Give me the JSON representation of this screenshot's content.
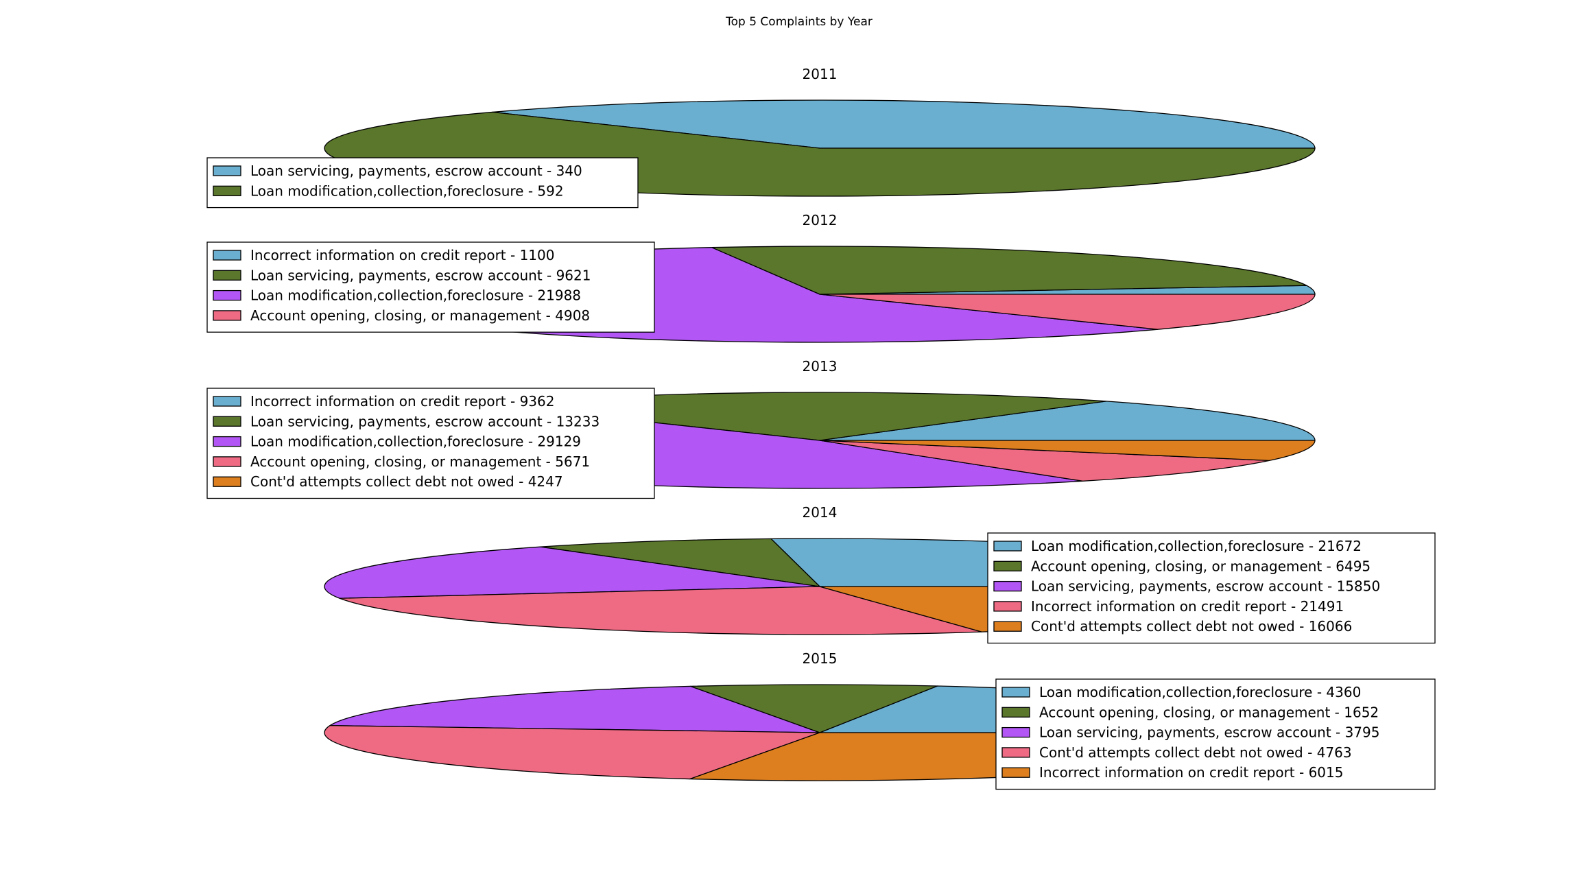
{
  "colors": {
    "blue": "#6aafd0",
    "green": "#5b772b",
    "purple": "#b257f5",
    "pink": "#ef6b84",
    "orange": "#dd7f1f"
  },
  "chart_data": {
    "type": "pie",
    "title": "Top 5 Complaints by Year",
    "pies": [
      {
        "year": "2011",
        "legend_position": "left",
        "slices": [
          {
            "label": "Loan servicing, payments, escrow account",
            "value": 340,
            "color": "#6aafd0",
            "legend_text": "Loan servicing, payments, escrow account - 340"
          },
          {
            "label": "Loan modification,collection,foreclosure",
            "value": 592,
            "color": "#5b772b",
            "legend_text": "Loan modification,collection,foreclosure - 592"
          }
        ]
      },
      {
        "year": "2012",
        "legend_position": "left",
        "slices": [
          {
            "label": "Incorrect information on credit report",
            "value": 1100,
            "color": "#6aafd0",
            "legend_text": "Incorrect information on credit report - 1100"
          },
          {
            "label": "Loan servicing, payments, escrow account",
            "value": 9621,
            "color": "#5b772b",
            "legend_text": "Loan servicing, payments, escrow account - 9621"
          },
          {
            "label": "Loan modification,collection,foreclosure",
            "value": 21988,
            "color": "#b257f5",
            "legend_text": "Loan modification,collection,foreclosure - 21988"
          },
          {
            "label": "Account opening, closing, or management",
            "value": 4908,
            "color": "#ef6b84",
            "legend_text": "Account opening, closing, or management - 4908"
          }
        ]
      },
      {
        "year": "2013",
        "legend_position": "left",
        "slices": [
          {
            "label": "Incorrect information on credit report",
            "value": 9362,
            "color": "#6aafd0",
            "legend_text": "Incorrect information on credit report - 9362"
          },
          {
            "label": "Loan servicing, payments, escrow account",
            "value": 13233,
            "color": "#5b772b",
            "legend_text": "Loan servicing, payments, escrow account - 13233"
          },
          {
            "label": "Loan modification,collection,foreclosure",
            "value": 29129,
            "color": "#b257f5",
            "legend_text": "Loan modification,collection,foreclosure - 29129"
          },
          {
            "label": "Account opening, closing, or management",
            "value": 5671,
            "color": "#ef6b84",
            "legend_text": "Account opening, closing, or management - 5671"
          },
          {
            "label": "Cont'd attempts collect debt not owed",
            "value": 4247,
            "color": "#dd7f1f",
            "legend_text": "Cont'd attempts collect debt not owed - 4247"
          }
        ]
      },
      {
        "year": "2014",
        "legend_position": "right",
        "slices": [
          {
            "label": "Loan modification,collection,foreclosure",
            "value": 21672,
            "color": "#6aafd0",
            "legend_text": "Loan modification,collection,foreclosure - 21672"
          },
          {
            "label": "Account opening, closing, or management",
            "value": 6495,
            "color": "#5b772b",
            "legend_text": "Account opening, closing, or management - 6495"
          },
          {
            "label": "Loan servicing, payments, escrow account",
            "value": 15850,
            "color": "#b257f5",
            "legend_text": "Loan servicing, payments, escrow account - 15850"
          },
          {
            "label": "Incorrect information on credit report",
            "value": 21491,
            "color": "#ef6b84",
            "legend_text": "Incorrect information on credit report - 21491"
          },
          {
            "label": "Cont'd attempts collect debt not owed",
            "value": 16066,
            "color": "#dd7f1f",
            "legend_text": "Cont'd attempts collect debt not owed - 16066"
          }
        ]
      },
      {
        "year": "2015",
        "legend_position": "right",
        "slices": [
          {
            "label": "Loan modification,collection,foreclosure",
            "value": 4360,
            "color": "#6aafd0",
            "legend_text": "Loan modification,collection,foreclosure - 4360"
          },
          {
            "label": "Account opening, closing, or management",
            "value": 1652,
            "color": "#5b772b",
            "legend_text": "Account opening, closing, or management - 1652"
          },
          {
            "label": "Loan servicing, payments, escrow account",
            "value": 3795,
            "color": "#b257f5",
            "legend_text": "Loan servicing, payments, escrow account - 3795"
          },
          {
            "label": "Cont'd attempts collect debt not owed",
            "value": 4763,
            "color": "#ef6b84",
            "legend_text": "Cont'd attempts collect debt not owed - 4763"
          },
          {
            "label": "Incorrect information on credit report",
            "value": 6015,
            "color": "#dd7f1f",
            "legend_text": "Incorrect information on credit report - 6015"
          }
        ]
      }
    ]
  }
}
